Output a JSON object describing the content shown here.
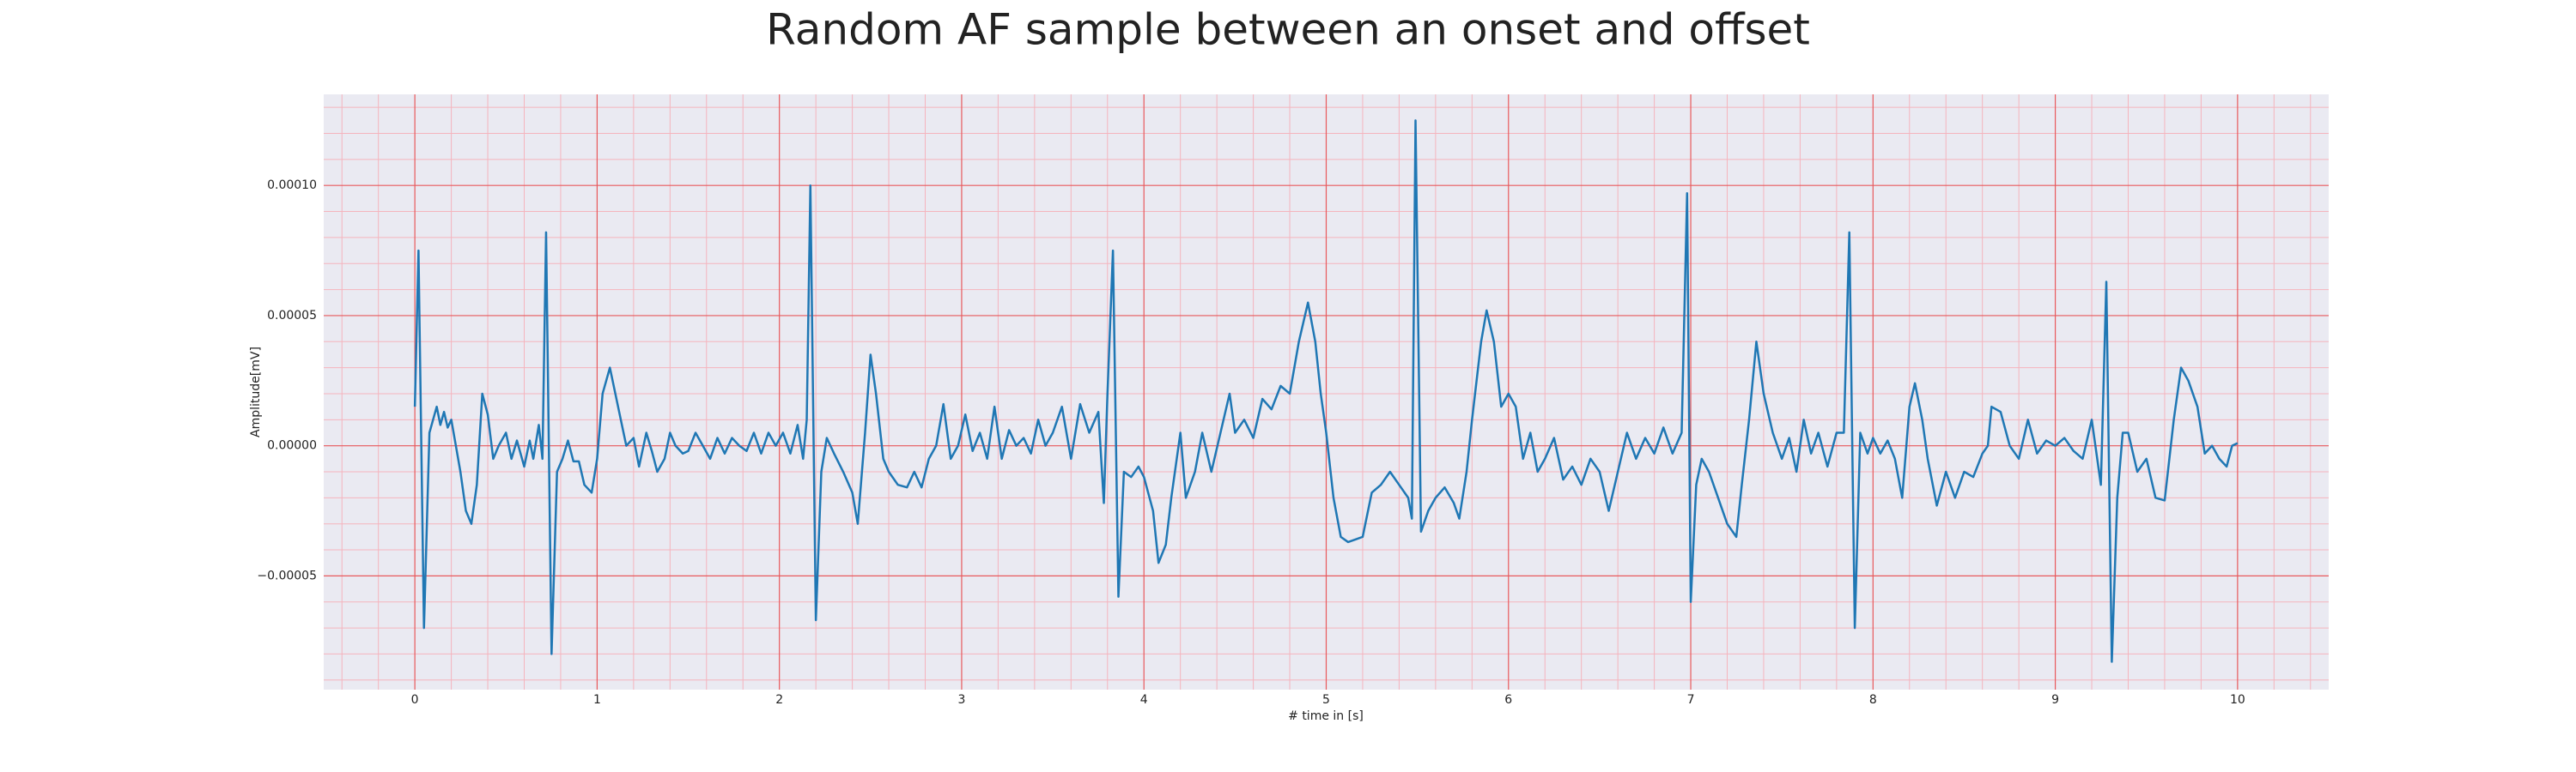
{
  "chart_data": {
    "type": "line",
    "title": "Random AF sample between an onset and offset",
    "xlabel": "# time in [s]",
    "ylabel": "Amplitude[mV]",
    "color": "#1f77b4",
    "grid": true,
    "minor_grid": true,
    "xlim": [
      -0.5,
      10.5
    ],
    "ylim": [
      -9.37e-05,
      0.000135
    ],
    "xticks": [
      0,
      1,
      2,
      3,
      4,
      5,
      6,
      7,
      8,
      9,
      10
    ],
    "yticks": [
      {
        "value": -5e-05,
        "label": "−0.00005"
      },
      {
        "value": 0,
        "label": "0.00000"
      },
      {
        "value": 5e-05,
        "label": "0.00005"
      },
      {
        "value": 0.0001,
        "label": "0.00010"
      }
    ],
    "xminorticks": [
      -0.4,
      -0.2,
      0.2,
      0.4,
      0.6,
      0.8,
      1.2,
      1.4,
      1.6,
      1.8,
      2.2,
      2.4,
      2.6,
      2.8,
      3.2,
      3.4,
      3.6,
      3.8,
      4.2,
      4.4,
      4.6,
      4.8,
      5.2,
      5.4,
      5.6,
      5.8,
      6.2,
      6.4,
      6.6,
      6.8,
      7.2,
      7.4,
      7.6,
      7.8,
      8.2,
      8.4,
      8.6,
      8.8,
      9.2,
      9.4,
      9.6,
      9.8,
      10.2,
      10.4
    ],
    "yminorticks": [
      -9e-05,
      -8e-05,
      -7e-05,
      -6e-05,
      -4e-05,
      -3e-05,
      -2e-05,
      -1e-05,
      1e-05,
      2e-05,
      3e-05,
      4e-05,
      6e-05,
      7e-05,
      8e-05,
      9e-05,
      0.00011,
      0.00012,
      0.00013
    ],
    "x": [
      0,
      0.02,
      0.05,
      0.08,
      0.1,
      0.12,
      0.14,
      0.16,
      0.18,
      0.2,
      0.22,
      0.25,
      0.28,
      0.31,
      0.34,
      0.37,
      0.4,
      0.43,
      0.46,
      0.5,
      0.53,
      0.56,
      0.6,
      0.63,
      0.65,
      0.68,
      0.7,
      0.72,
      0.75,
      0.78,
      0.81,
      0.84,
      0.87,
      0.9,
      0.93,
      0.97,
      1.0,
      1.03,
      1.07,
      1.1,
      1.13,
      1.16,
      1.2,
      1.23,
      1.27,
      1.3,
      1.33,
      1.37,
      1.4,
      1.43,
      1.47,
      1.5,
      1.54,
      1.58,
      1.62,
      1.66,
      1.7,
      1.74,
      1.78,
      1.82,
      1.86,
      1.9,
      1.94,
      1.98,
      2.02,
      2.06,
      2.1,
      2.13,
      2.15,
      2.17,
      2.2,
      2.23,
      2.26,
      2.3,
      2.35,
      2.4,
      2.43,
      2.47,
      2.5,
      2.53,
      2.57,
      2.6,
      2.65,
      2.7,
      2.74,
      2.78,
      2.82,
      2.86,
      2.9,
      2.94,
      2.98,
      3.02,
      3.06,
      3.1,
      3.14,
      3.18,
      3.22,
      3.26,
      3.3,
      3.34,
      3.38,
      3.42,
      3.46,
      3.5,
      3.55,
      3.6,
      3.65,
      3.7,
      3.75,
      3.78,
      3.8,
      3.83,
      3.86,
      3.89,
      3.93,
      3.97,
      4.0,
      4.05,
      4.08,
      4.12,
      4.15,
      4.2,
      4.23,
      4.28,
      4.32,
      4.37,
      4.42,
      4.47,
      4.5,
      4.55,
      4.6,
      4.65,
      4.7,
      4.75,
      4.8,
      4.85,
      4.9,
      4.94,
      4.97,
      5.0,
      5.04,
      5.08,
      5.12,
      5.16,
      5.2,
      5.25,
      5.3,
      5.35,
      5.4,
      5.45,
      5.47,
      5.49,
      5.52,
      5.56,
      5.6,
      5.65,
      5.7,
      5.73,
      5.77,
      5.8,
      5.85,
      5.88,
      5.92,
      5.96,
      6.0,
      6.04,
      6.08,
      6.12,
      6.16,
      6.2,
      6.25,
      6.3,
      6.35,
      6.4,
      6.45,
      6.5,
      6.55,
      6.6,
      6.65,
      6.7,
      6.75,
      6.8,
      6.85,
      6.9,
      6.95,
      6.98,
      7.0,
      7.03,
      7.06,
      7.1,
      7.15,
      7.2,
      7.25,
      7.28,
      7.32,
      7.36,
      7.4,
      7.45,
      7.5,
      7.54,
      7.58,
      7.62,
      7.66,
      7.7,
      7.75,
      7.8,
      7.84,
      7.87,
      7.9,
      7.93,
      7.97,
      8.0,
      8.04,
      8.08,
      8.12,
      8.16,
      8.2,
      8.23,
      8.27,
      8.3,
      8.35,
      8.4,
      8.45,
      8.5,
      8.55,
      8.6,
      8.63,
      8.65,
      8.7,
      8.75,
      8.8,
      8.85,
      8.9,
      8.95,
      9.0,
      9.05,
      9.1,
      9.15,
      9.2,
      9.25,
      9.28,
      9.31,
      9.34,
      9.37,
      9.4,
      9.45,
      9.5,
      9.55,
      9.6,
      9.65,
      9.69,
      9.73,
      9.78,
      9.82,
      9.86,
      9.9,
      9.94,
      9.97,
      10.0
    ],
    "values": [
      1.5e-05,
      7.5e-05,
      -7e-05,
      5e-06,
      1e-05,
      1.5e-05,
      8e-06,
      1.3e-05,
      7e-06,
      1e-05,
      2e-06,
      -1e-05,
      -2.5e-05,
      -3e-05,
      -1.5e-05,
      2e-05,
      1.2e-05,
      -5e-06,
      0,
      5e-06,
      -5e-06,
      2e-06,
      -8e-06,
      2e-06,
      -5e-06,
      8e-06,
      -5e-06,
      8.2e-05,
      -8e-05,
      -1e-05,
      -5e-06,
      2e-06,
      -6e-06,
      -6e-06,
      -1.5e-05,
      -1.8e-05,
      -5e-06,
      2e-05,
      3e-05,
      2e-05,
      1e-05,
      0,
      3e-06,
      -8e-06,
      5e-06,
      -2e-06,
      -1e-05,
      -5e-06,
      5e-06,
      0,
      -3e-06,
      -2e-06,
      5e-06,
      0,
      -5e-06,
      3e-06,
      -3e-06,
      3e-06,
      0,
      -2e-06,
      5e-06,
      -3e-06,
      5e-06,
      0,
      5e-06,
      -3e-06,
      8e-06,
      -5e-06,
      1e-05,
      0.0001,
      -6.7e-05,
      -1e-05,
      3e-06,
      -3e-06,
      -1e-05,
      -1.8e-05,
      -3e-05,
      5e-06,
      3.5e-05,
      2e-05,
      -5e-06,
      -1e-05,
      -1.5e-05,
      -1.6e-05,
      -1e-05,
      -1.6e-05,
      -5e-06,
      0,
      1.6e-05,
      -5e-06,
      0,
      1.2e-05,
      -2e-06,
      5e-06,
      -5e-06,
      1.5e-05,
      -5e-06,
      6e-06,
      0,
      3e-06,
      -3e-06,
      1e-05,
      0,
      5e-06,
      1.5e-05,
      -5e-06,
      1.6e-05,
      5e-06,
      1.3e-05,
      -2.2e-05,
      2e-05,
      7.5e-05,
      -5.8e-05,
      -1e-05,
      -1.2e-05,
      -8e-06,
      -1.2e-05,
      -2.5e-05,
      -4.5e-05,
      -3.8e-05,
      -2e-05,
      5e-06,
      -2e-05,
      -1e-05,
      5e-06,
      -1e-05,
      5e-06,
      2e-05,
      5e-06,
      1e-05,
      3e-06,
      1.8e-05,
      1.4e-05,
      2.3e-05,
      2e-05,
      4e-05,
      5.5e-05,
      4e-05,
      2e-05,
      5e-06,
      -2e-05,
      -3.5e-05,
      -3.7e-05,
      -3.6e-05,
      -3.5e-05,
      -1.8e-05,
      -1.5e-05,
      -1e-05,
      -1.5e-05,
      -2e-05,
      -2.8e-05,
      0.000125,
      -3.3e-05,
      -2.5e-05,
      -2e-05,
      -1.6e-05,
      -2.2e-05,
      -2.8e-05,
      -1e-05,
      1e-05,
      4e-05,
      5.2e-05,
      4e-05,
      1.5e-05,
      2e-05,
      1.5e-05,
      -5e-06,
      5e-06,
      -1e-05,
      -5e-06,
      3e-06,
      -1.3e-05,
      -8e-06,
      -1.5e-05,
      -5e-06,
      -1e-05,
      -2.5e-05,
      -1e-05,
      5e-06,
      -5e-06,
      3e-06,
      -3e-06,
      7e-06,
      -3e-06,
      5e-06,
      9.7e-05,
      -6e-05,
      -1.5e-05,
      -5e-06,
      -1e-05,
      -2e-05,
      -3e-05,
      -3.5e-05,
      -1.5e-05,
      1e-05,
      4e-05,
      2e-05,
      5e-06,
      -5e-06,
      3e-06,
      -1e-05,
      1e-05,
      -3e-06,
      5e-06,
      -8e-06,
      5e-06,
      5e-06,
      8.2e-05,
      -7e-05,
      5e-06,
      -3e-06,
      3e-06,
      -3e-06,
      2e-06,
      -5e-06,
      -2e-05,
      1.5e-05,
      2.4e-05,
      1e-05,
      -5e-06,
      -2.3e-05,
      -1e-05,
      -2e-05,
      -1e-05,
      -1.2e-05,
      -3e-06,
      0,
      1.5e-05,
      1.3e-05,
      0,
      -5e-06,
      1e-05,
      -3e-06,
      2e-06,
      0,
      3e-06,
      -2e-06,
      -5e-06,
      1e-05,
      -1.5e-05,
      6.3e-05,
      -8.3e-05,
      -2e-05,
      5e-06,
      5e-06,
      -1e-05,
      -5e-06,
      -2e-05,
      -2.1e-05,
      1e-05,
      3e-05,
      2.5e-05,
      1.5e-05,
      -3e-06,
      0,
      -5e-06,
      -8e-06,
      0,
      1e-06
    ]
  }
}
